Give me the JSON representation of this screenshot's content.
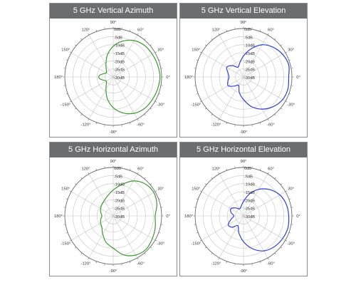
{
  "chart_data": [
    {
      "type": "polar-line",
      "title": "5 GHz Vertical Azimuth",
      "color": "#3a9a2e",
      "r_range_db": [
        -30,
        0
      ],
      "ring_labels": [
        "0dB",
        "-5dB",
        "-10dB",
        "-15dB",
        "-20dB",
        "-25dB",
        "-30dB"
      ],
      "angle_labels": [
        "0°",
        "30°",
        "60°",
        "90°",
        "120°",
        "150°",
        "180°",
        "-150°",
        "-120°",
        "-90°",
        "-60°",
        "-30°"
      ],
      "series": [
        {
          "angles_deg": [
            0,
            15,
            30,
            45,
            60,
            75,
            90,
            105,
            120,
            135,
            150,
            160,
            170,
            180,
            190,
            200,
            210,
            225,
            240,
            255,
            270,
            285,
            300,
            315,
            330,
            345
          ],
          "values_db": [
            -1,
            -1.5,
            -2,
            -2.5,
            -4,
            -7,
            -11,
            -16,
            -21,
            -24,
            -25,
            -24,
            -22,
            -21,
            -22,
            -24,
            -25,
            -24,
            -21,
            -16,
            -11,
            -7,
            -4,
            -2.5,
            -2,
            -1.5
          ]
        }
      ]
    },
    {
      "type": "polar-line",
      "title": "5 GHz Vertical Elevation",
      "color": "#2f3fd6",
      "r_range_db": [
        -30,
        0
      ],
      "ring_labels": [
        "0dB",
        "-5dB",
        "-10dB",
        "-15dB",
        "-20dB",
        "-25dB",
        "-30dB"
      ],
      "angle_labels": [
        "0°",
        "30°",
        "60°",
        "90°",
        "120°",
        "150°",
        "180°",
        "-150°",
        "-120°",
        "-90°",
        "-60°",
        "-30°"
      ],
      "series": [
        {
          "angles_deg": [
            0,
            15,
            30,
            45,
            60,
            75,
            90,
            105,
            120,
            135,
            150,
            165,
            180,
            195,
            210,
            225,
            240,
            255,
            270,
            285,
            300,
            315,
            330,
            345
          ],
          "values_db": [
            -2,
            -1,
            -2,
            -4,
            -7,
            -12,
            -17,
            -21,
            -23,
            -20,
            -18,
            -20,
            -21,
            -20,
            -19,
            -22,
            -24,
            -20,
            -16,
            -11,
            -7,
            -4,
            -2,
            -1.5
          ]
        }
      ]
    },
    {
      "type": "polar-line",
      "title": "5 GHz Horizontal Azimuth",
      "color": "#3a9a2e",
      "r_range_db": [
        -30,
        0
      ],
      "ring_labels": [
        "0dB",
        "-5dB",
        "-10dB",
        "-15dB",
        "-20dB",
        "-25dB",
        "-30dB"
      ],
      "angle_labels": [
        "0°",
        "30°",
        "60°",
        "90°",
        "120°",
        "150°",
        "180°",
        "-150°",
        "-120°",
        "-90°",
        "-60°",
        "-30°"
      ],
      "series": [
        {
          "angles_deg": [
            0,
            15,
            30,
            45,
            60,
            75,
            90,
            105,
            120,
            135,
            150,
            165,
            180,
            195,
            210,
            225,
            240,
            255,
            270,
            285,
            300,
            315,
            330,
            345
          ],
          "values_db": [
            -4,
            -2,
            -1,
            -2,
            -5,
            -10,
            -14,
            -17,
            -19,
            -20,
            -21,
            -22,
            -23,
            -22,
            -21,
            -20,
            -17,
            -13,
            -10,
            -5,
            -2,
            -1,
            -2,
            -3
          ]
        }
      ]
    },
    {
      "type": "polar-line",
      "title": "5 GHz Horizontal Elevation",
      "color": "#2f3fd6",
      "r_range_db": [
        -30,
        0
      ],
      "ring_labels": [
        "0dB",
        "-5dB",
        "-10dB",
        "-15dB",
        "-20dB",
        "-25dB",
        "-30dB"
      ],
      "angle_labels": [
        "0°",
        "30°",
        "60°",
        "90°",
        "120°",
        "150°",
        "180°",
        "-150°",
        "-120°",
        "-90°",
        "-60°",
        "-30°"
      ],
      "series": [
        {
          "angles_deg": [
            0,
            15,
            30,
            45,
            60,
            75,
            90,
            105,
            120,
            135,
            150,
            165,
            180,
            195,
            210,
            225,
            240,
            255,
            270,
            285,
            300,
            315,
            330,
            345
          ],
          "values_db": [
            -2,
            -2.5,
            -4,
            -7,
            -11,
            -16,
            -21,
            -24,
            -25,
            -23,
            -21,
            -22,
            -24,
            -22,
            -19,
            -20,
            -23,
            -19,
            -14,
            -9,
            -5,
            -3,
            -2,
            -1.5
          ]
        }
      ]
    }
  ]
}
